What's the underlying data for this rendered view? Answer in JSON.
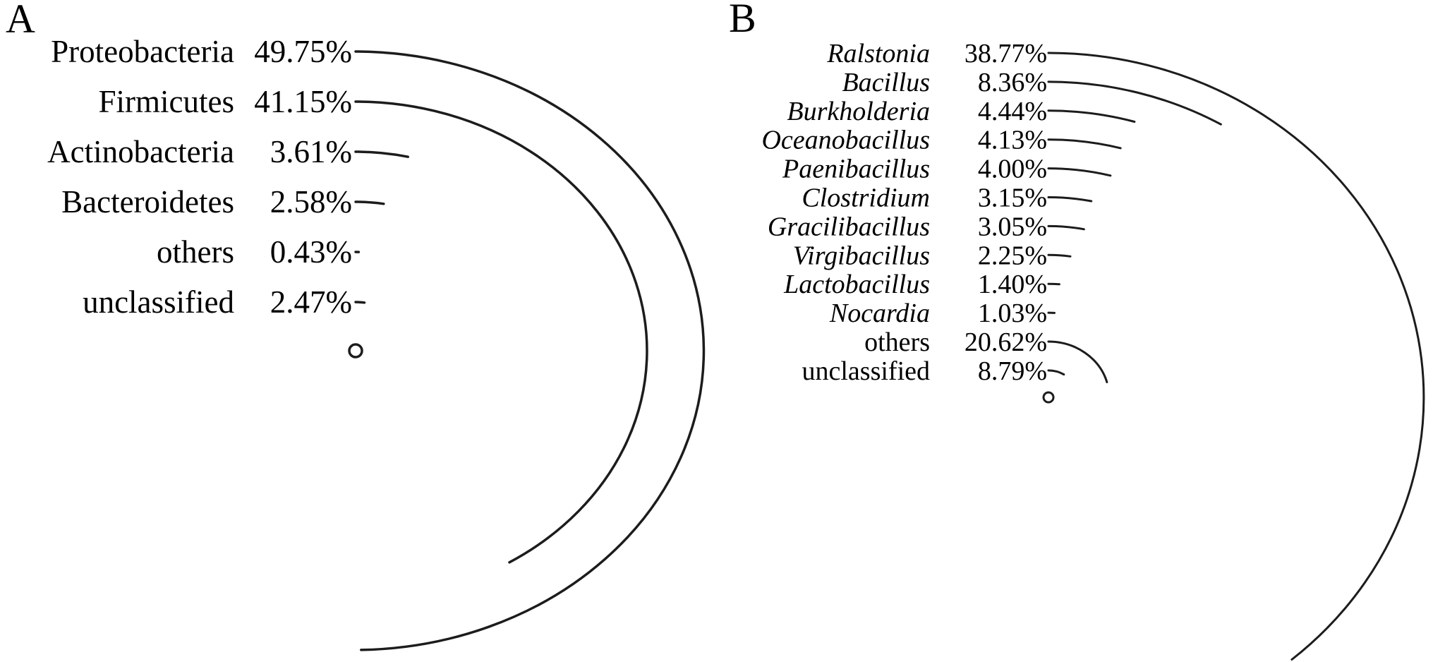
{
  "figure": {
    "background": "#ffffff",
    "panels": [
      {
        "letter": "A",
        "items": [
          {
            "name": "Proteobacteria",
            "pct": 49.75,
            "pct_label": "49.75%",
            "italic": false
          },
          {
            "name": "Firmicutes",
            "pct": 41.15,
            "pct_label": "41.15%",
            "italic": false
          },
          {
            "name": "Actinobacteria",
            "pct": 3.61,
            "pct_label": "3.61%",
            "italic": false
          },
          {
            "name": "Bacteroidetes",
            "pct": 2.58,
            "pct_label": "2.58%",
            "italic": false
          },
          {
            "name": "others",
            "pct": 0.43,
            "pct_label": "0.43%",
            "italic": false
          },
          {
            "name": "unclassified",
            "pct": 2.47,
            "pct_label": "2.47%",
            "italic": false
          }
        ]
      },
      {
        "letter": "B",
        "items": [
          {
            "name": "Ralstonia",
            "pct": 38.77,
            "pct_label": "38.77%",
            "italic": true
          },
          {
            "name": "Bacillus",
            "pct": 8.36,
            "pct_label": "8.36%",
            "italic": true
          },
          {
            "name": "Burkholderia",
            "pct": 4.44,
            "pct_label": "4.44%",
            "italic": true
          },
          {
            "name": "Oceanobacillus",
            "pct": 4.13,
            "pct_label": "4.13%",
            "italic": true
          },
          {
            "name": "Paenibacillus",
            "pct": 4.0,
            "pct_label": "4.00%",
            "italic": true
          },
          {
            "name": "Clostridium",
            "pct": 3.15,
            "pct_label": "3.15%",
            "italic": true
          },
          {
            "name": "Gracilibacillus",
            "pct": 3.05,
            "pct_label": "3.05%",
            "italic": true
          },
          {
            "name": "Virgibacillus",
            "pct": 2.25,
            "pct_label": "2.25%",
            "italic": true
          },
          {
            "name": "Lactobacillus",
            "pct": 1.4,
            "pct_label": "1.40%",
            "italic": true
          },
          {
            "name": "Nocardia",
            "pct": 1.03,
            "pct_label": "1.03%",
            "italic": true
          },
          {
            "name": "others",
            "pct": 20.62,
            "pct_label": "20.62%",
            "italic": false
          },
          {
            "name": "unclassified",
            "pct": 8.79,
            "pct_label": "8.79%",
            "italic": false
          }
        ]
      }
    ]
  },
  "colors": {
    "arc": "#1c1c1c",
    "text": "#000000",
    "background": "#ffffff"
  },
  "chart_data": [
    {
      "type": "pie",
      "variant": "concentric-arc",
      "title": "A",
      "categories": [
        "Proteobacteria",
        "Firmicutes",
        "Actinobacteria",
        "Bacteroidetes",
        "others",
        "unclassified"
      ],
      "values": [
        49.75,
        41.15,
        3.61,
        2.58,
        0.43,
        2.47
      ],
      "value_unit": "%",
      "legend_position": "left",
      "notes": "Each taxon drawn as an arc starting at 12 o'clock of its own radius; arc angle = percentage of 360 degrees; labels right-aligned beside arc starts; small circle marks shared center"
    },
    {
      "type": "pie",
      "variant": "concentric-arc",
      "title": "B",
      "categories": [
        "Ralstonia",
        "Bacillus",
        "Burkholderia",
        "Oceanobacillus",
        "Paenibacillus",
        "Clostridium",
        "Gracilibacillus",
        "Virgibacillus",
        "Lactobacillus",
        "Nocardia",
        "others",
        "unclassified"
      ],
      "values": [
        38.77,
        8.36,
        4.44,
        4.13,
        4.0,
        3.15,
        3.05,
        2.25,
        1.4,
        1.03,
        20.62,
        8.79
      ],
      "value_unit": "%",
      "legend_position": "left",
      "notes": "Genus names italic; others/unclassified roman; arc angle = percentage of 360 degrees; small circle marks shared center"
    }
  ]
}
